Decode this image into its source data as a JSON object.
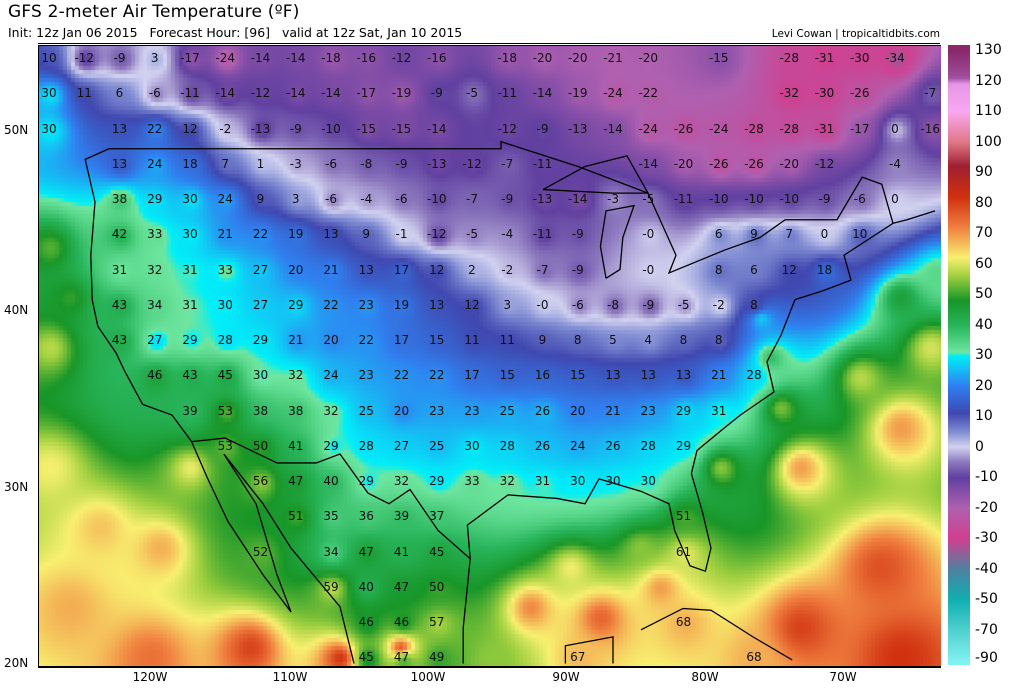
{
  "header": {
    "title": "GFS 2-meter Air Temperature (ºF)",
    "subtitle": "Init: 12z Jan 06 2015   Forecast Hour: [96]   valid at 12z Sat, Jan 10 2015",
    "credit": "Levi Cowan | tropicaltidbits.com"
  },
  "axes": {
    "lat_labels": [
      "50N",
      "40N",
      "30N",
      "20N"
    ],
    "lon_labels": [
      "120W",
      "110W",
      "100W",
      "90W",
      "80W",
      "70W"
    ]
  },
  "colorbar": {
    "labels": [
      "130",
      "120",
      "110",
      "100",
      "90",
      "80",
      "70",
      "60",
      "50",
      "40",
      "30",
      "20",
      "10",
      "0",
      "-10",
      "-20",
      "-30",
      "-40",
      "-50",
      "-70",
      "-90"
    ]
  },
  "map_labels": [
    [
      "10",
      "-12",
      "-9",
      "3",
      "-17",
      "-24",
      "-14",
      "-14",
      "-18",
      "-16",
      "-12",
      "-16",
      null,
      "-18",
      "-20",
      "-20",
      "-21",
      "-20",
      null,
      "-15",
      null,
      "-28",
      "-31",
      "-30",
      "-34",
      null
    ],
    [
      "30",
      "11",
      "6",
      "-6",
      "-11",
      "-14",
      "-12",
      "-14",
      "-14",
      "-17",
      "-19",
      "-9",
      "-5",
      "-11",
      "-14",
      "-19",
      "-24",
      "-22",
      null,
      null,
      null,
      "-32",
      "-30",
      "-26",
      null,
      "-7"
    ],
    [
      "30",
      null,
      "13",
      "22",
      "12",
      "-2",
      "-13",
      "-9",
      "-10",
      "-15",
      "-15",
      "-14",
      null,
      "-12",
      "-9",
      "-13",
      "-14",
      "-24",
      "-26",
      "-24",
      "-28",
      "-28",
      "-31",
      "-17",
      "0",
      "-16"
    ],
    [
      null,
      null,
      "13",
      "24",
      "18",
      "7",
      "1",
      "-3",
      "-6",
      "-8",
      "-9",
      "-13",
      "-12",
      "-7",
      "-11",
      null,
      null,
      "-14",
      "-20",
      "-26",
      "-26",
      "-20",
      "-12",
      null,
      "-4",
      null
    ],
    [
      null,
      null,
      "38",
      "29",
      "30",
      "24",
      "9",
      "3",
      "-6",
      "-4",
      "-6",
      "-10",
      "-7",
      "-9",
      "-13",
      "-14",
      "-3",
      "-5",
      "-11",
      "-10",
      "-10",
      "-10",
      "-9",
      "-6",
      "0",
      null
    ],
    [
      null,
      null,
      "42",
      "33",
      "30",
      "21",
      "22",
      "19",
      "13",
      "9",
      "-1",
      "-12",
      "-5",
      "-4",
      "-11",
      "-9",
      null,
      "-0",
      null,
      "6",
      "9",
      "7",
      "0",
      "10",
      null,
      null
    ],
    [
      null,
      null,
      "31",
      "32",
      "31",
      "33",
      "27",
      "20",
      "21",
      "13",
      "17",
      "12",
      "2",
      "-2",
      "-7",
      "-9",
      null,
      "-0",
      null,
      "8",
      "6",
      "12",
      "18",
      null,
      null,
      null
    ],
    [
      null,
      null,
      "43",
      "34",
      "31",
      "30",
      "27",
      "29",
      "22",
      "23",
      "19",
      "13",
      "12",
      "3",
      "-0",
      "-6",
      "-8",
      "-9",
      "-5",
      "-2",
      "8",
      null,
      null,
      null,
      null,
      null
    ],
    [
      null,
      null,
      "43",
      "27",
      "29",
      "28",
      "29",
      "21",
      "20",
      "22",
      "17",
      "15",
      "11",
      "11",
      "9",
      "8",
      "5",
      "4",
      "8",
      "8",
      null,
      null,
      null,
      null,
      null,
      null
    ],
    [
      null,
      null,
      null,
      "46",
      "43",
      "45",
      "30",
      "32",
      "24",
      "23",
      "22",
      "22",
      "17",
      "15",
      "16",
      "15",
      "13",
      "13",
      "13",
      "21",
      "28",
      null,
      null,
      null,
      null,
      null
    ],
    [
      null,
      null,
      null,
      null,
      "39",
      "53",
      "38",
      "38",
      "32",
      "25",
      "20",
      "23",
      "23",
      "25",
      "26",
      "20",
      "21",
      "23",
      "29",
      "31",
      null,
      null,
      null,
      null,
      null,
      null
    ],
    [
      null,
      null,
      null,
      null,
      null,
      "53",
      "50",
      "41",
      "29",
      "28",
      "27",
      "25",
      "30",
      "28",
      "26",
      "24",
      "26",
      "28",
      "29",
      null,
      null,
      null,
      null,
      null,
      null,
      null
    ],
    [
      null,
      null,
      null,
      null,
      null,
      null,
      "56",
      "47",
      "40",
      "29",
      "32",
      "29",
      "33",
      "32",
      "31",
      "30",
      "30",
      "30",
      null,
      null,
      null,
      null,
      null,
      null,
      null,
      null
    ],
    [
      null,
      null,
      null,
      null,
      null,
      null,
      null,
      "51",
      "35",
      "36",
      "39",
      "37",
      null,
      null,
      null,
      null,
      null,
      null,
      "51",
      null,
      null,
      null,
      null,
      null,
      null,
      null
    ],
    [
      null,
      null,
      null,
      null,
      null,
      null,
      "52",
      null,
      "34",
      "47",
      "41",
      "45",
      null,
      null,
      null,
      null,
      null,
      null,
      "61",
      null,
      null,
      null,
      null,
      null,
      null,
      null
    ],
    [
      null,
      null,
      null,
      null,
      null,
      null,
      null,
      null,
      "59",
      "40",
      "47",
      "50",
      null,
      null,
      null,
      null,
      null,
      null,
      null,
      null,
      null,
      null,
      null,
      null,
      null,
      null
    ],
    [
      null,
      null,
      null,
      null,
      null,
      null,
      null,
      null,
      null,
      "46",
      "46",
      "57",
      null,
      null,
      null,
      null,
      null,
      null,
      "68",
      null,
      null,
      null,
      null,
      null,
      null,
      null
    ],
    [
      null,
      null,
      null,
      null,
      null,
      null,
      null,
      null,
      null,
      "45",
      "47",
      "49",
      null,
      null,
      null,
      "67",
      null,
      null,
      null,
      null,
      "68",
      null,
      null,
      null,
      null,
      null
    ]
  ]
}
